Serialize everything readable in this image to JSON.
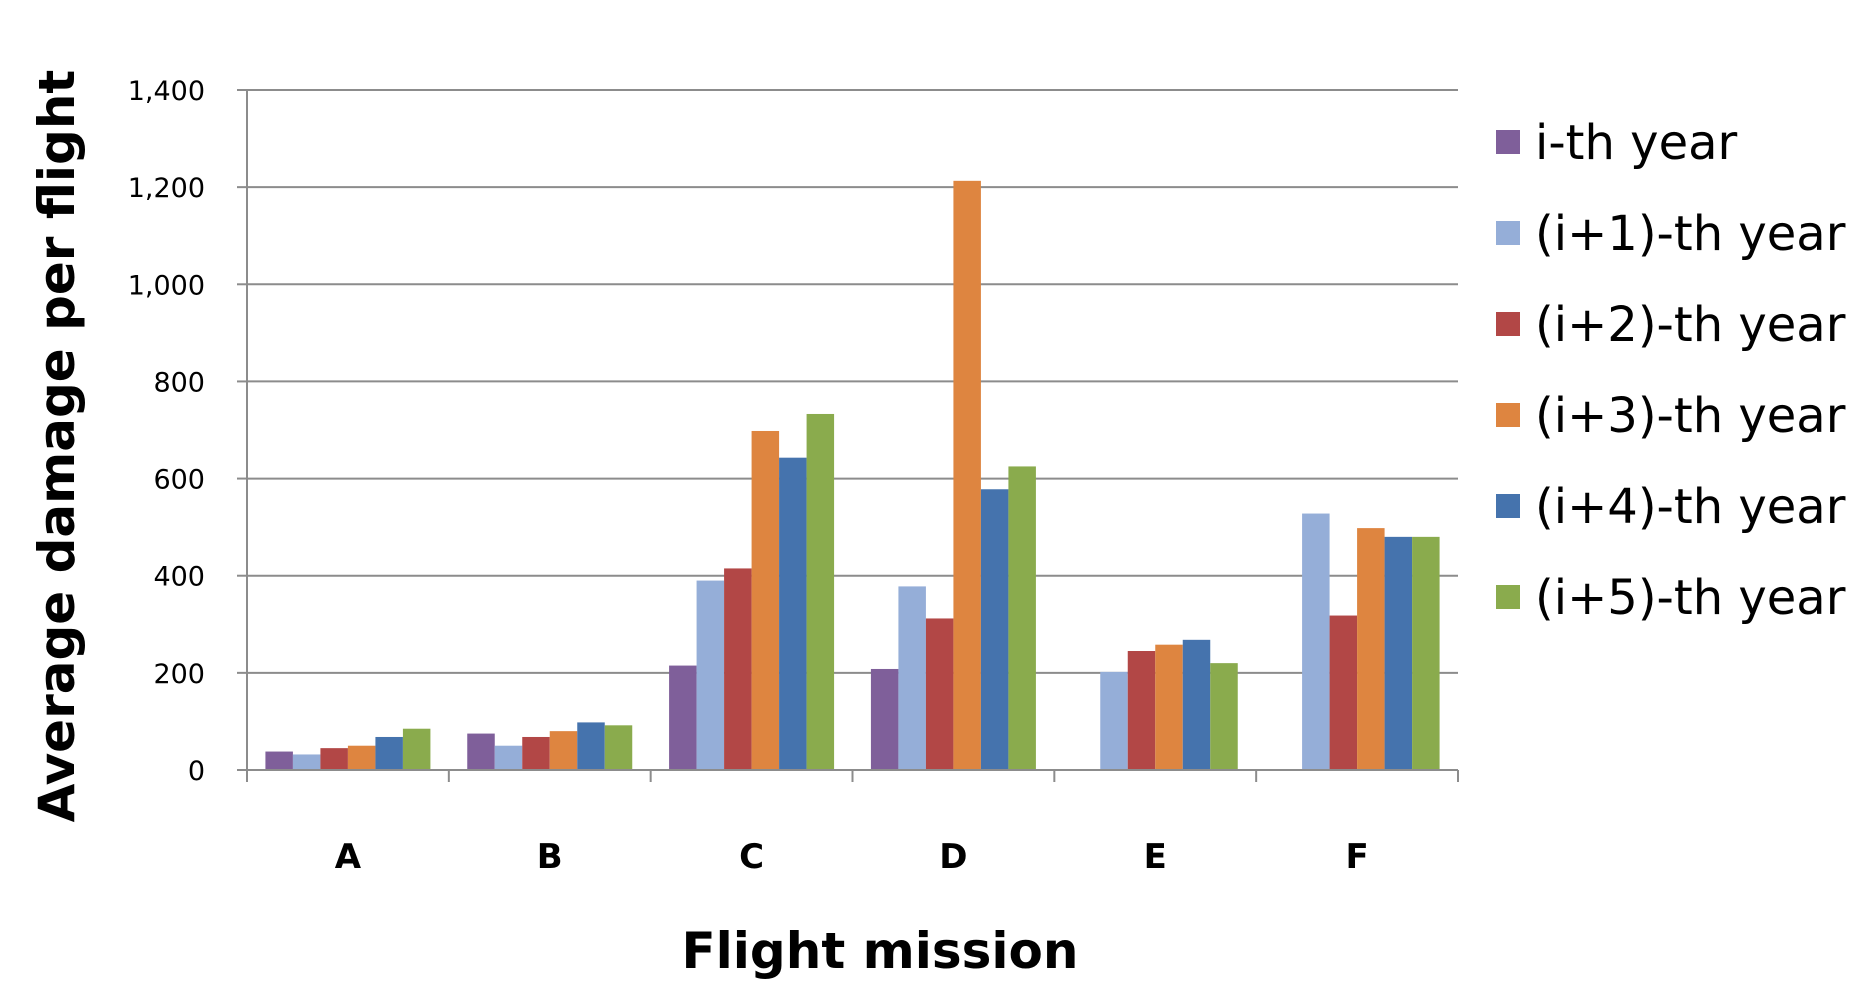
{
  "chart_data": {
    "type": "bar",
    "title": "",
    "xlabel": "Flight mission",
    "ylabel": "Average damage per flight",
    "ylim": [
      0,
      1400
    ],
    "yticks": [
      "0",
      "200",
      "400",
      "600",
      "800",
      "1,000",
      "1,200",
      "1,400"
    ],
    "ytick_values": [
      0,
      200,
      400,
      600,
      800,
      1000,
      1200,
      1400
    ],
    "categories": [
      "A",
      "B",
      "C",
      "D",
      "E",
      "F"
    ],
    "grid": true,
    "legend_position": "right",
    "series": [
      {
        "name": "i-th year",
        "color": "#7f5f9a",
        "values": [
          38,
          75,
          215,
          208,
          0,
          0
        ]
      },
      {
        "name": "(i+1)-th year",
        "color": "#95aed8",
        "values": [
          32,
          50,
          390,
          378,
          202,
          528
        ]
      },
      {
        "name": "(i+2)-th year",
        "color": "#b24746",
        "values": [
          45,
          68,
          415,
          312,
          245,
          318
        ]
      },
      {
        "name": "(i+3)-th year",
        "color": "#de8540",
        "values": [
          50,
          80,
          698,
          1213,
          258,
          498
        ]
      },
      {
        "name": "(i+4)-th year",
        "color": "#4573ad",
        "values": [
          68,
          98,
          643,
          578,
          268,
          480
        ]
      },
      {
        "name": "(i+5)-th year",
        "color": "#8aab4d",
        "values": [
          85,
          92,
          733,
          625,
          220,
          480
        ]
      }
    ]
  }
}
